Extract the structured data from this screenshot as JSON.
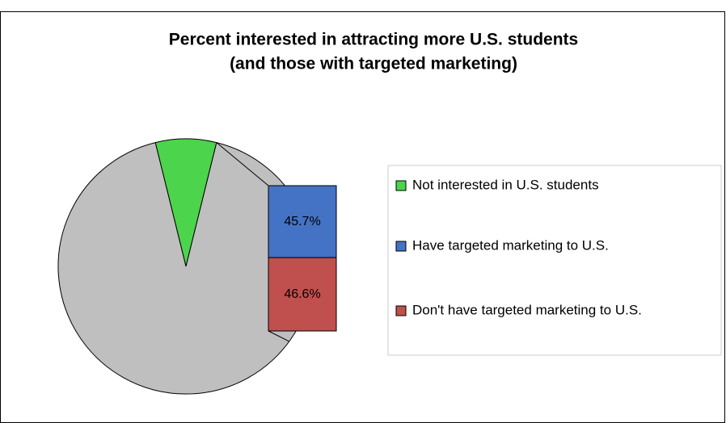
{
  "chart_data": {
    "type": "pie",
    "title": "Percent interested in attracting more U.S. students",
    "subtitle": "(and those with targeted marketing)",
    "categories": [
      "Not interested in U.S. students",
      "Have targeted marketing to U.S.",
      "Don't have targeted marketing to U.S."
    ],
    "values": [
      7.7,
      45.7,
      46.6
    ],
    "value_labels": [
      null,
      "45.7%",
      "46.6%"
    ],
    "colors": [
      "#4cd44c",
      "#4472c4",
      "#c0504d"
    ]
  }
}
